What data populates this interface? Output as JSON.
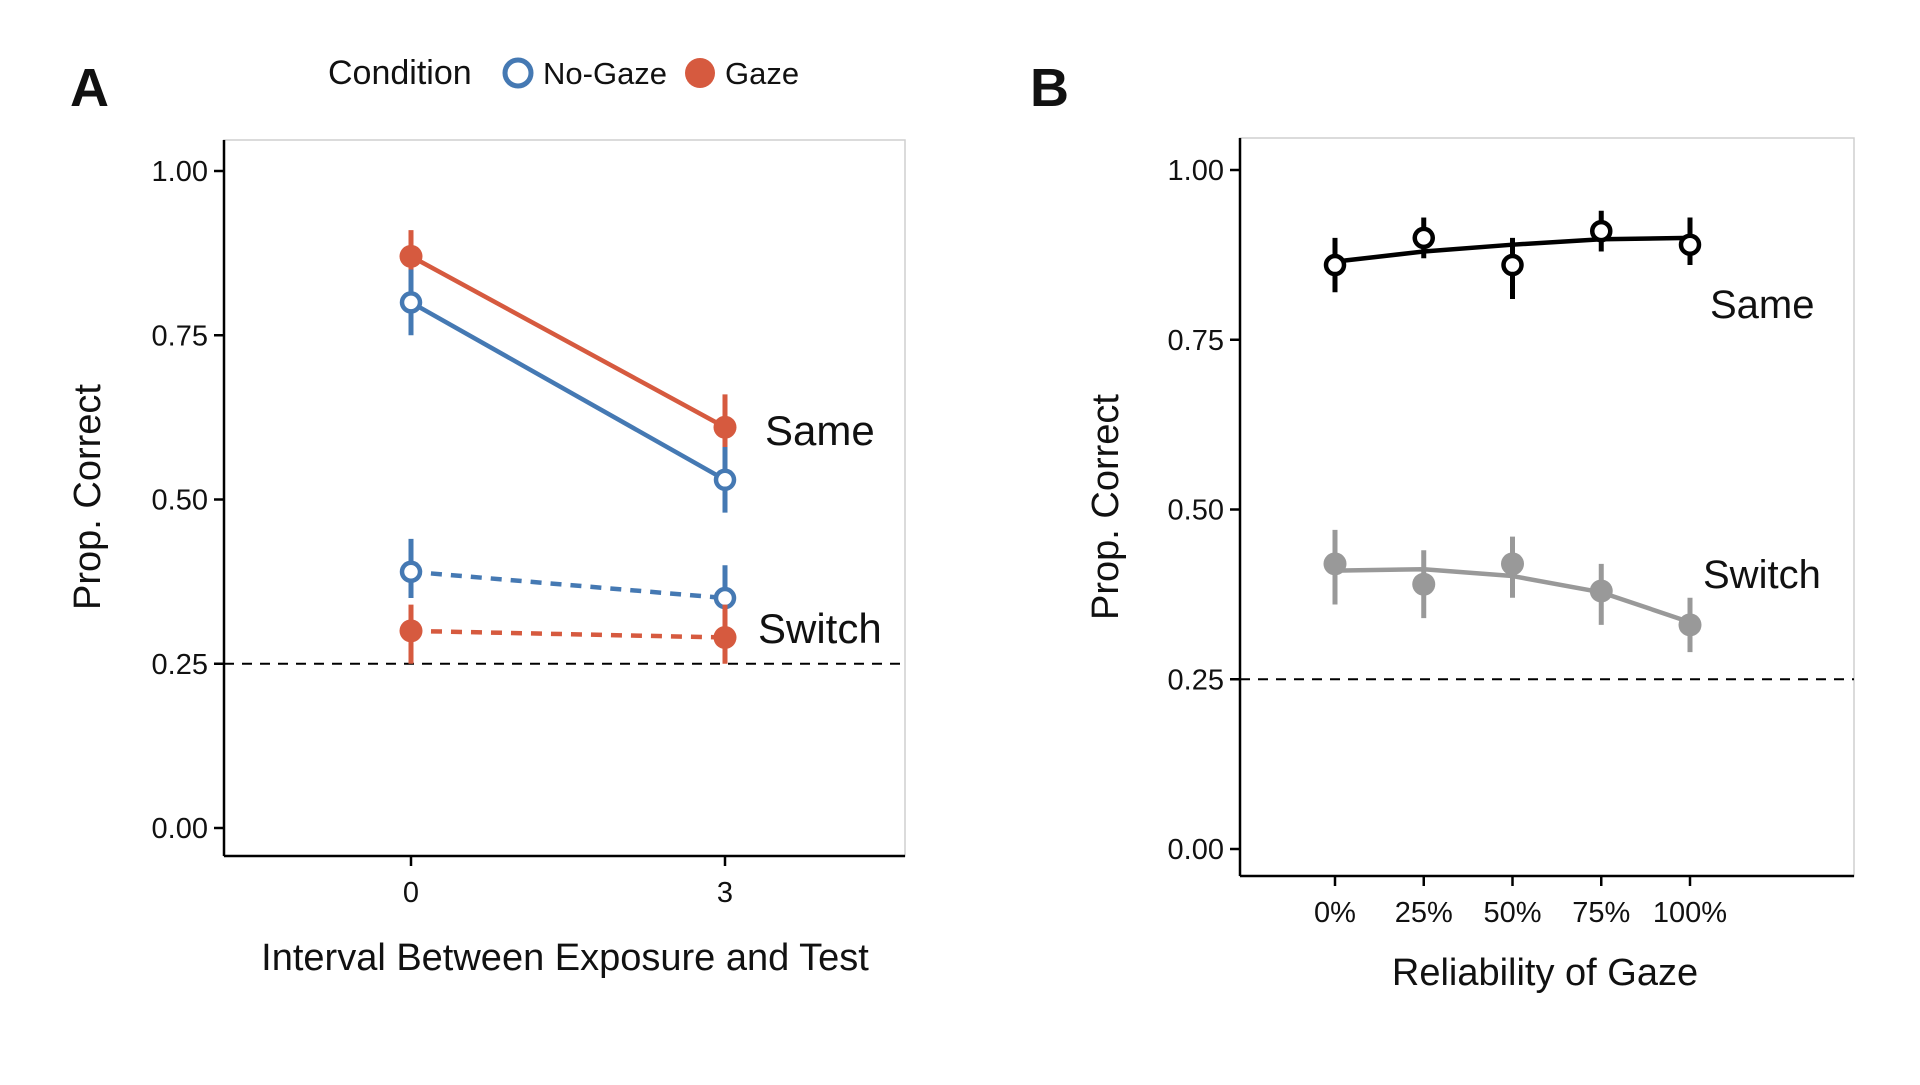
{
  "figure": {
    "background": "#ffffff"
  },
  "chart_data": [
    {
      "panel_label": "A",
      "type": "line",
      "xlabel": "Interval Between Exposure and Test",
      "ylabel": "Prop. Correct",
      "x_ticks": [
        "0",
        "3"
      ],
      "x": [
        0,
        3
      ],
      "y_ticks": [
        "0.00",
        "0.25",
        "0.50",
        "0.75",
        "1.00"
      ],
      "ylim": [
        0,
        1
      ],
      "reference_line": {
        "y": 0.25,
        "style": "dashed"
      },
      "grid": false,
      "legend": {
        "title": "Condition",
        "position": "top",
        "entries": [
          {
            "label": "No-Gaze",
            "color": "#4579b3",
            "marker": "open-circle"
          },
          {
            "label": "Gaze",
            "color": "#d65a3f",
            "marker": "filled-circle"
          }
        ]
      },
      "group_labels": [
        "Same",
        "Switch"
      ],
      "series": [
        {
          "condition": "Gaze",
          "group": "Same",
          "line": "solid",
          "color": "#d65a3f",
          "marker": "filled",
          "values": [
            0.87,
            0.61
          ],
          "lower": [
            0.83,
            0.56
          ],
          "upper": [
            0.91,
            0.66
          ]
        },
        {
          "condition": "No-Gaze",
          "group": "Same",
          "line": "solid",
          "color": "#4579b3",
          "marker": "open",
          "values": [
            0.8,
            0.53
          ],
          "lower": [
            0.75,
            0.48
          ],
          "upper": [
            0.85,
            0.58
          ]
        },
        {
          "condition": "No-Gaze",
          "group": "Switch",
          "line": "dashed",
          "color": "#4579b3",
          "marker": "open",
          "values": [
            0.39,
            0.35
          ],
          "lower": [
            0.35,
            0.31
          ],
          "upper": [
            0.44,
            0.4
          ]
        },
        {
          "condition": "Gaze",
          "group": "Switch",
          "line": "dashed",
          "color": "#d65a3f",
          "marker": "filled",
          "values": [
            0.3,
            0.29
          ],
          "lower": [
            0.25,
            0.25
          ],
          "upper": [
            0.34,
            0.34
          ]
        }
      ]
    },
    {
      "panel_label": "B",
      "type": "line",
      "xlabel": "Reliability of Gaze",
      "ylabel": "Prop. Correct",
      "x_ticks": [
        "0%",
        "25%",
        "50%",
        "75%",
        "100%"
      ],
      "x": [
        0,
        25,
        50,
        75,
        100
      ],
      "y_ticks": [
        "0.00",
        "0.25",
        "0.50",
        "0.75",
        "1.00"
      ],
      "ylim": [
        0,
        1
      ],
      "reference_line": {
        "y": 0.25,
        "style": "dashed"
      },
      "grid": false,
      "group_labels": [
        "Same",
        "Switch"
      ],
      "series": [
        {
          "group": "Same",
          "color": "#000000",
          "marker": "open",
          "values": [
            0.86,
            0.9,
            0.86,
            0.91,
            0.89
          ],
          "lower": [
            0.82,
            0.87,
            0.81,
            0.88,
            0.86
          ],
          "upper": [
            0.9,
            0.93,
            0.9,
            0.94,
            0.93
          ],
          "fit": [
            0.865,
            0.88,
            0.89,
            0.898,
            0.9
          ]
        },
        {
          "group": "Switch",
          "color": "#999999",
          "marker": "filled",
          "values": [
            0.42,
            0.39,
            0.42,
            0.38,
            0.33
          ],
          "lower": [
            0.36,
            0.34,
            0.37,
            0.33,
            0.29
          ],
          "upper": [
            0.47,
            0.44,
            0.46,
            0.42,
            0.37
          ],
          "fit": [
            0.41,
            0.412,
            0.402,
            0.378,
            0.334
          ]
        }
      ]
    }
  ]
}
